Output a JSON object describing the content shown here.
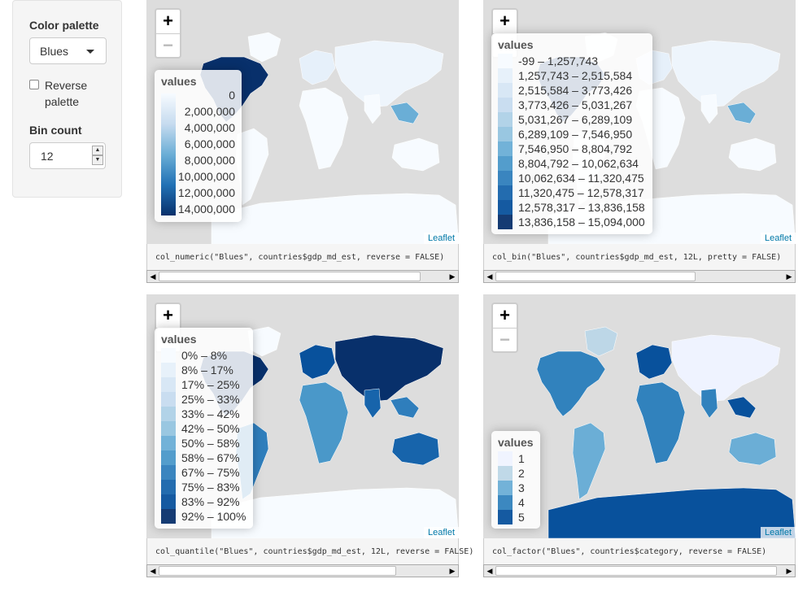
{
  "sidebar": {
    "palette_label": "Color palette",
    "palette_value": "Blues",
    "reverse_label_1": "Reverse",
    "reverse_label_2": "palette",
    "bin_label": "Bin count",
    "bin_value": "12"
  },
  "panels": [
    {
      "attribution": "Leaflet",
      "code": "col_numeric(\"Blues\", countries$gdp_md_est, reverse = FALSE)",
      "legend_title": "values",
      "ticks": [
        "0",
        "2,000,000",
        "4,000,000",
        "6,000,000",
        "8,000,000",
        "10,000,000",
        "12,000,000",
        "14,000,000"
      ]
    },
    {
      "attribution": "Leaflet",
      "code": "col_bin(\"Blues\", countries$gdp_md_est, 12L, pretty = FALSE)",
      "legend_title": "values",
      "bins": [
        "-99 – 1,257,743",
        "1,257,743 – 2,515,584",
        "2,515,584 – 3,773,426",
        "3,773,426 – 5,031,267",
        "5,031,267 – 6,289,109",
        "6,289,109 – 7,546,950",
        "7,546,950 – 8,804,792",
        "8,804,792 – 10,062,634",
        "10,062,634 – 11,320,475",
        "11,320,475 – 12,578,317",
        "12,578,317 – 13,836,158",
        "13,836,158 – 15,094,000"
      ]
    },
    {
      "attribution": "Leaflet",
      "code": "col_quantile(\"Blues\", countries$gdp_md_est, 12L, reverse = FALSE)",
      "legend_title": "values",
      "bins": [
        "0% – 8%",
        "8% – 17%",
        "17% – 25%",
        "25% – 33%",
        "33% – 42%",
        "42% – 50%",
        "50% – 58%",
        "58% – 67%",
        "67% – 75%",
        "75% – 83%",
        "83% – 92%",
        "92% – 100%"
      ]
    },
    {
      "attribution": "Leaflet",
      "code": "col_factor(\"Blues\", countries$category, reverse = FALSE)",
      "legend_title": "values",
      "bins": [
        "1",
        "2",
        "3",
        "4",
        "5"
      ]
    }
  ],
  "colors": {
    "blues12": [
      "#f7fbff",
      "#e6f0fa",
      "#d6e6f4",
      "#c6dbef",
      "#aed1e7",
      "#94c4df",
      "#6aaed6",
      "#4a98c9",
      "#2f7ebc",
      "#1764ab",
      "#08519c",
      "#08306b"
    ],
    "blues5": [
      "#eff3ff",
      "#bdd7e7",
      "#6baed6",
      "#3182bd",
      "#08519c"
    ],
    "zoom_in": "+",
    "zoom_out": "−"
  }
}
